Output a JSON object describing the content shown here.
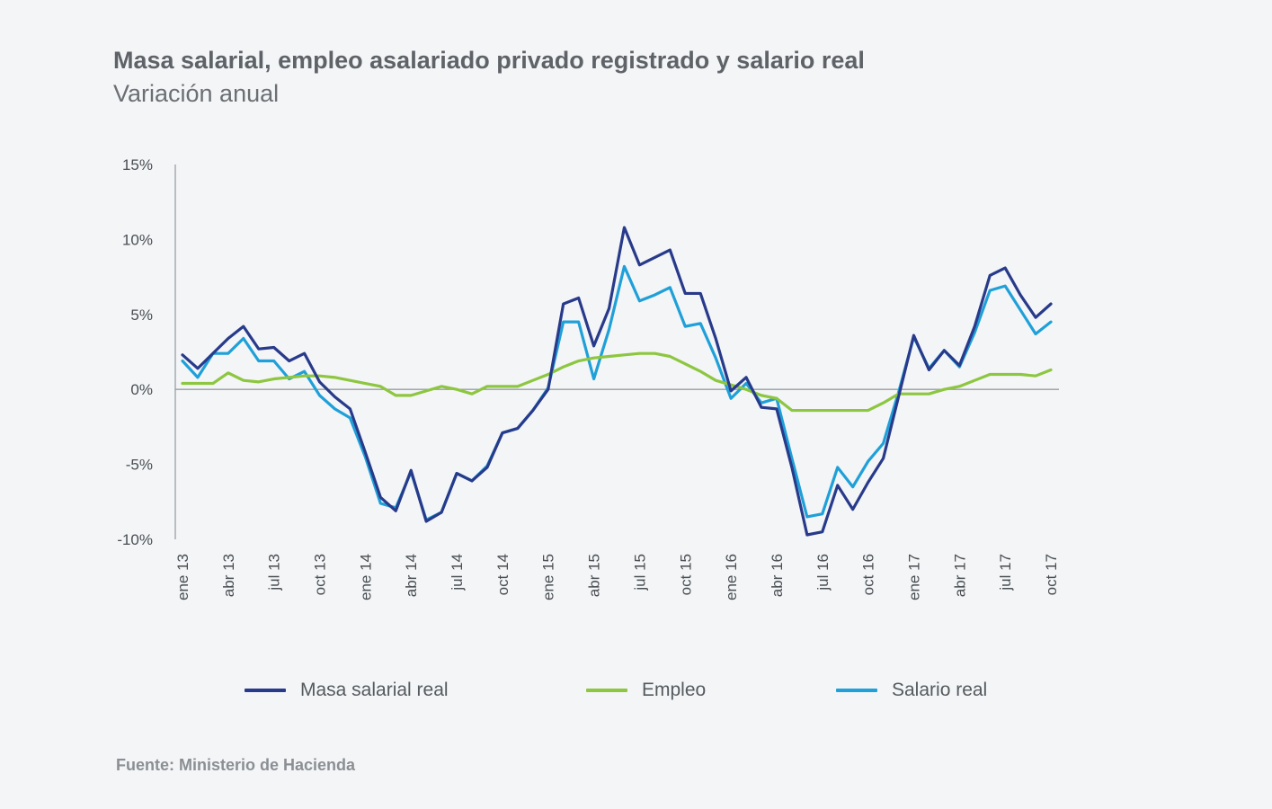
{
  "chart_data": {
    "type": "line",
    "title": "Masa salarial, empleo asalariado privado registrado y salario real",
    "subtitle": "Variación anual",
    "ylim": [
      -10,
      15
    ],
    "y_ticks": [
      -10,
      -5,
      0,
      5,
      10,
      15
    ],
    "y_tick_labels": [
      "-10%",
      "-5%",
      "0%",
      "5%",
      "10%",
      "15%"
    ],
    "x": [
      "ene 13",
      "feb 13",
      "mar 13",
      "abr 13",
      "may 13",
      "jun 13",
      "jul 13",
      "ago 13",
      "sep 13",
      "oct 13",
      "nov 13",
      "dic 13",
      "ene 14",
      "feb 14",
      "mar 14",
      "abr 14",
      "may 14",
      "jun 14",
      "jul 14",
      "ago 14",
      "sep 14",
      "oct 14",
      "nov 14",
      "dic 14",
      "ene 15",
      "feb 15",
      "mar 15",
      "abr 15",
      "may 15",
      "jun 15",
      "jul 15",
      "ago 15",
      "sep 15",
      "oct 15",
      "nov 15",
      "dic 15",
      "ene 16",
      "feb 16",
      "mar 16",
      "abr 16",
      "may 16",
      "jun 16",
      "jul 16",
      "ago 16",
      "sep 16",
      "oct 16",
      "nov 16",
      "dic 16",
      "ene 17",
      "feb 17",
      "mar 17",
      "abr 17",
      "may 17",
      "jun 17",
      "jul 17",
      "ago 17",
      "sep 17",
      "oct 17"
    ],
    "x_tick_labels": [
      "ene 13",
      "abr 13",
      "jul 13",
      "oct 13",
      "ene 14",
      "abr 14",
      "jul 14",
      "oct 14",
      "ene 15",
      "abr 15",
      "jul 15",
      "oct 15",
      "ene 16",
      "abr 16",
      "jul 16",
      "oct 16",
      "ene 17",
      "abr 17",
      "jul 17",
      "oct 17"
    ],
    "grid": false,
    "legend_position": "bottom",
    "series": [
      {
        "name": "Masa salarial real",
        "color": "#283a8a",
        "values": [
          2.3,
          1.4,
          2.4,
          3.4,
          4.2,
          2.7,
          2.8,
          1.9,
          2.4,
          0.5,
          -0.5,
          -1.3,
          -4.2,
          -7.2,
          -8.1,
          -5.4,
          -8.8,
          -8.2,
          -5.6,
          -6.1,
          -5.2,
          -2.9,
          -2.6,
          -1.4,
          0.0,
          5.7,
          6.1,
          2.9,
          5.4,
          10.8,
          8.3,
          8.8,
          9.3,
          6.4,
          6.4,
          3.4,
          -0.1,
          0.8,
          -1.2,
          -1.3,
          -5.2,
          -9.7,
          -9.5,
          -6.4,
          -8.0,
          -6.2,
          -4.6,
          -0.5,
          3.6,
          1.3,
          2.6,
          1.6,
          4.2,
          7.6,
          8.1,
          6.3,
          4.8,
          5.7
        ]
      },
      {
        "name": "Empleo",
        "color": "#8dc63f",
        "values": [
          0.4,
          0.4,
          0.4,
          1.1,
          0.6,
          0.5,
          0.7,
          0.8,
          0.9,
          0.9,
          0.8,
          0.6,
          0.4,
          0.2,
          -0.4,
          -0.4,
          -0.1,
          0.2,
          0.0,
          -0.3,
          0.2,
          0.2,
          0.2,
          0.6,
          1.0,
          1.5,
          1.9,
          2.1,
          2.2,
          2.3,
          2.4,
          2.4,
          2.2,
          1.7,
          1.2,
          0.6,
          0.3,
          0.0,
          -0.4,
          -0.6,
          -1.4,
          -1.4,
          -1.4,
          -1.4,
          -1.4,
          -1.4,
          -0.9,
          -0.3,
          -0.3,
          -0.3,
          0.0,
          0.2,
          0.6,
          1.0,
          1.0,
          1.0,
          0.9,
          1.3
        ]
      },
      {
        "name": "Salario real",
        "color": "#1fa0d8",
        "values": [
          1.9,
          0.8,
          2.4,
          2.4,
          3.4,
          1.9,
          1.9,
          0.7,
          1.2,
          -0.4,
          -1.3,
          -1.9,
          -4.5,
          -7.6,
          -7.9,
          -5.5,
          -8.7,
          -8.2,
          -5.6,
          -6.1,
          -5.1,
          -2.9,
          -2.6,
          -1.4,
          0.1,
          4.5,
          4.5,
          0.7,
          4.0,
          8.2,
          5.9,
          6.3,
          6.8,
          4.2,
          4.4,
          2.1,
          -0.6,
          0.4,
          -0.9,
          -0.6,
          -4.6,
          -8.5,
          -8.3,
          -5.2,
          -6.5,
          -4.8,
          -3.6,
          -0.2,
          3.5,
          1.4,
          2.6,
          1.5,
          3.8,
          6.6,
          6.9,
          5.3,
          3.7,
          4.5
        ]
      }
    ]
  },
  "source": "Fuente: Ministerio de Hacienda"
}
